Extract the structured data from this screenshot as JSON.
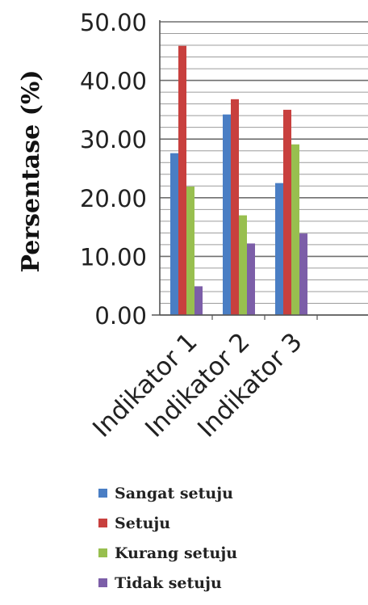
{
  "chart_data": {
    "type": "bar",
    "ylabel": "Persentase (%)",
    "xlabel": "",
    "ylim": [
      0,
      50
    ],
    "yticks": [
      "0.00",
      "10.00",
      "20.00",
      "30.00",
      "40.00",
      "50.00"
    ],
    "minor_gridlines_every": 2,
    "categories": [
      "Indikator 1",
      "Indikator 2",
      "Indikator 3"
    ],
    "legend_position": "bottom",
    "series": [
      {
        "name": "Sangat setuju",
        "color": "#4a7ec4",
        "values": [
          27.6,
          34.2,
          22.5
        ]
      },
      {
        "name": "Setuju",
        "color": "#c8403e",
        "values": [
          45.9,
          36.8,
          35.0
        ]
      },
      {
        "name": "Kurang setuju",
        "color": "#98bf4f",
        "values": [
          21.9,
          17.0,
          29.1
        ]
      },
      {
        "name": "Tidak setuju",
        "color": "#7c5ea8",
        "values": [
          4.9,
          12.2,
          13.9
        ]
      }
    ]
  }
}
